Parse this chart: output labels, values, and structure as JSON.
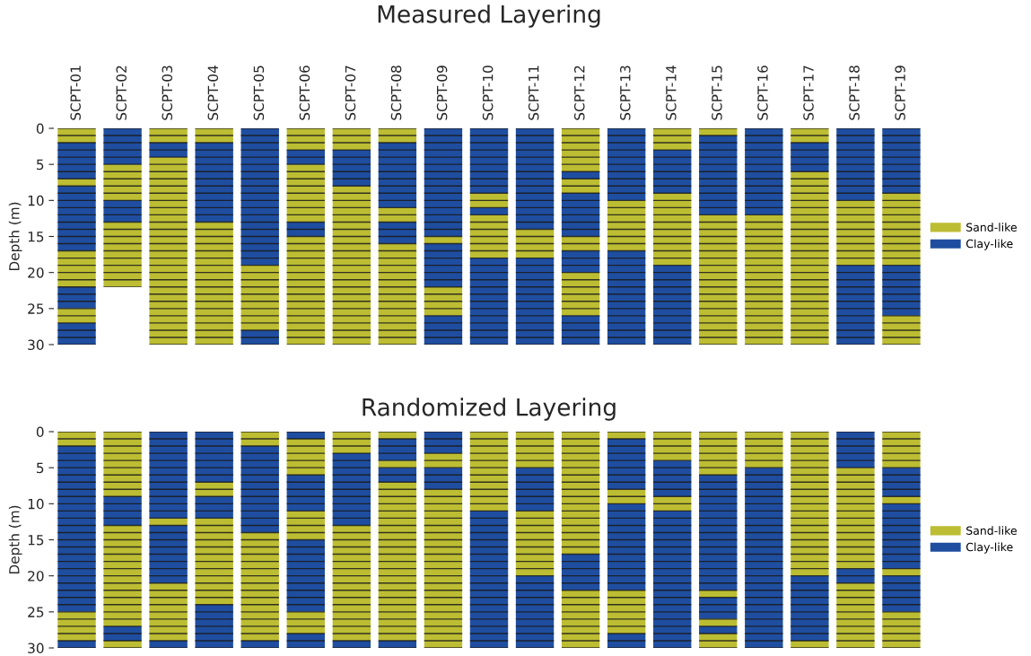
{
  "chart_data": [
    {
      "type": "bar",
      "title": "Measured Layering",
      "ylabel": "Depth (m)",
      "stacked": true,
      "legend": "right",
      "grid": "y",
      "categories": [
        "SCPT-01",
        "SCPT-02",
        "SCPT-03",
        "SCPT-04",
        "SCPT-05",
        "SCPT-06",
        "SCPT-07",
        "SCPT-08",
        "SCPT-09",
        "SCPT-10",
        "SCPT-11",
        "SCPT-12",
        "SCPT-13",
        "SCPT-14",
        "SCPT-15",
        "SCPT-16",
        "SCPT-17",
        "SCPT-18",
        "SCPT-19"
      ],
      "ylim": [
        30,
        0
      ],
      "yticks": [
        0,
        {
          "value": 1,
          "label": null
        },
        {
          "value": 2,
          "label": null
        },
        {
          "value": 3,
          "label": null
        },
        {
          "value": 4,
          "label": null
        },
        5,
        {
          "value": 6,
          "label": null
        },
        {
          "value": 7,
          "label": null
        },
        {
          "value": 8,
          "label": null
        },
        {
          "value": 9,
          "label": null
        },
        10,
        {
          "value": 11,
          "label": null
        },
        {
          "value": 12,
          "label": null
        },
        {
          "value": 13,
          "label": null
        },
        {
          "value": 14,
          "label": null
        },
        15,
        {
          "value": 16,
          "label": null
        },
        {
          "value": 17,
          "label": null
        },
        {
          "value": 18,
          "label": null
        },
        {
          "value": 19,
          "label": null
        },
        20,
        {
          "value": 21,
          "label": null
        },
        {
          "value": 22,
          "label": null
        },
        {
          "value": 23,
          "label": null
        },
        {
          "value": 24,
          "label": null
        },
        25,
        {
          "value": 26,
          "label": null
        },
        {
          "value": 27,
          "label": null
        },
        {
          "value": 28,
          "label": null
        },
        {
          "value": 29,
          "label": null
        },
        30
      ],
      "series": [
        {
          "name": "Sand-like",
          "color": "#bcbd32",
          "values": [
            2,
            null,
            2,
            2,
            null,
            3,
            3,
            2,
            null,
            null,
            null,
            6,
            null,
            3,
            1,
            null,
            2,
            null,
            null
          ]
        },
        {
          "name": "Clay-like",
          "color": "#1f4ea0",
          "values": [
            5,
            5,
            2,
            11,
            19,
            2,
            5,
            9,
            15,
            9,
            14,
            1,
            10,
            6,
            11,
            12,
            4,
            10,
            9
          ]
        },
        {
          "color": "#bcbd32",
          "values": [
            1,
            5,
            26,
            17,
            9,
            8,
            22,
            2,
            1,
            2,
            4,
            2,
            7,
            10,
            18,
            18,
            24,
            9,
            10
          ]
        },
        {
          "color": "#1f4ea0",
          "values": [
            9,
            3,
            null,
            null,
            2,
            2,
            null,
            3,
            6,
            1,
            12,
            6,
            13,
            11,
            null,
            null,
            null,
            11,
            7
          ]
        },
        {
          "color": "#bcbd32",
          "values": [
            5,
            9,
            null,
            null,
            null,
            15,
            null,
            14,
            4,
            6,
            null,
            2,
            null,
            null,
            null,
            null,
            null,
            null,
            4
          ]
        },
        {
          "color": "#1f4ea0",
          "values": [
            3,
            null,
            null,
            null,
            null,
            null,
            null,
            null,
            4,
            12,
            null,
            3,
            null,
            null,
            null,
            null,
            null,
            null,
            null
          ]
        },
        {
          "color": "#bcbd32",
          "values": [
            2,
            null,
            null,
            null,
            null,
            null,
            null,
            null,
            null,
            null,
            null,
            6,
            null,
            null,
            null,
            null,
            null,
            null,
            null
          ]
        },
        {
          "color": "#1f4ea0",
          "values": [
            3,
            null,
            null,
            null,
            null,
            null,
            null,
            null,
            null,
            null,
            null,
            4,
            null,
            null,
            null,
            null,
            null,
            null,
            null
          ]
        }
      ]
    },
    {
      "type": "bar",
      "title": "Randomized Layering",
      "ylabel": "Depth (m)",
      "stacked": true,
      "legend": "right",
      "grid": "y",
      "tick_labels": "y",
      "categories": [
        null,
        null,
        null,
        null,
        null,
        null,
        null,
        null,
        null,
        null,
        null,
        null,
        null,
        null,
        null,
        null,
        null,
        null,
        null
      ],
      "ylim": [
        30,
        0
      ],
      "yticks": [
        0,
        {
          "value": 1,
          "label": null
        },
        {
          "value": 2,
          "label": null
        },
        {
          "value": 3,
          "label": null
        },
        {
          "value": 4,
          "label": null
        },
        5,
        {
          "value": 6,
          "label": null
        },
        {
          "value": 7,
          "label": null
        },
        {
          "value": 8,
          "label": null
        },
        {
          "value": 9,
          "label": null
        },
        10,
        {
          "value": 11,
          "label": null
        },
        {
          "value": 12,
          "label": null
        },
        {
          "value": 13,
          "label": null
        },
        {
          "value": 14,
          "label": null
        },
        15,
        {
          "value": 16,
          "label": null
        },
        {
          "value": 17,
          "label": null
        },
        {
          "value": 18,
          "label": null
        },
        {
          "value": 19,
          "label": null
        },
        20,
        {
          "value": 21,
          "label": null
        },
        {
          "value": 22,
          "label": null
        },
        {
          "value": 23,
          "label": null
        },
        {
          "value": 24,
          "label": null
        },
        25,
        {
          "value": 26,
          "label": null
        },
        {
          "value": 27,
          "label": null
        },
        {
          "value": 28,
          "label": null
        },
        {
          "value": 29,
          "label": null
        },
        30
      ],
      "series": [
        {
          "name": "Sand-like",
          "color": "#bcbd32",
          "values": [
            2,
            9,
            null,
            null,
            2,
            null,
            3,
            1,
            null,
            11,
            5,
            17,
            1,
            4,
            6,
            5,
            20,
            null,
            5
          ]
        },
        {
          "name": "Clay-like",
          "color": "#1f4ea0",
          "values": [
            23,
            4,
            12,
            7,
            12,
            1,
            10,
            3,
            3,
            19,
            6,
            5,
            7,
            5,
            16,
            25,
            9,
            5,
            4
          ]
        },
        {
          "color": "#bcbd32",
          "values": [
            4,
            14,
            1,
            2,
            15,
            5,
            16,
            1,
            2,
            null,
            9,
            8,
            2,
            2,
            1,
            null,
            1,
            14,
            1
          ]
        },
        {
          "color": "#1f4ea0",
          "values": [
            1,
            2,
            8,
            3,
            1,
            5,
            1,
            2,
            3,
            null,
            10,
            null,
            12,
            19,
            3,
            null,
            null,
            2,
            9
          ]
        },
        {
          "color": "#bcbd32",
          "values": [
            null,
            1,
            8,
            12,
            null,
            4,
            null,
            22,
            22,
            null,
            null,
            null,
            6,
            null,
            1,
            null,
            null,
            9,
            1
          ]
        },
        {
          "color": "#1f4ea0",
          "values": [
            null,
            null,
            1,
            6,
            null,
            10,
            null,
            1,
            null,
            null,
            null,
            null,
            2,
            null,
            1,
            null,
            null,
            null,
            5
          ]
        },
        {
          "color": "#bcbd32",
          "values": [
            null,
            null,
            null,
            null,
            null,
            3,
            null,
            null,
            null,
            null,
            null,
            null,
            null,
            null,
            2,
            null,
            null,
            null,
            5
          ]
        },
        {
          "color": "#1f4ea0",
          "values": [
            null,
            null,
            null,
            null,
            null,
            2,
            null,
            null,
            null,
            null,
            null,
            null,
            null,
            null,
            null,
            null,
            null,
            null,
            null
          ]
        }
      ]
    }
  ]
}
